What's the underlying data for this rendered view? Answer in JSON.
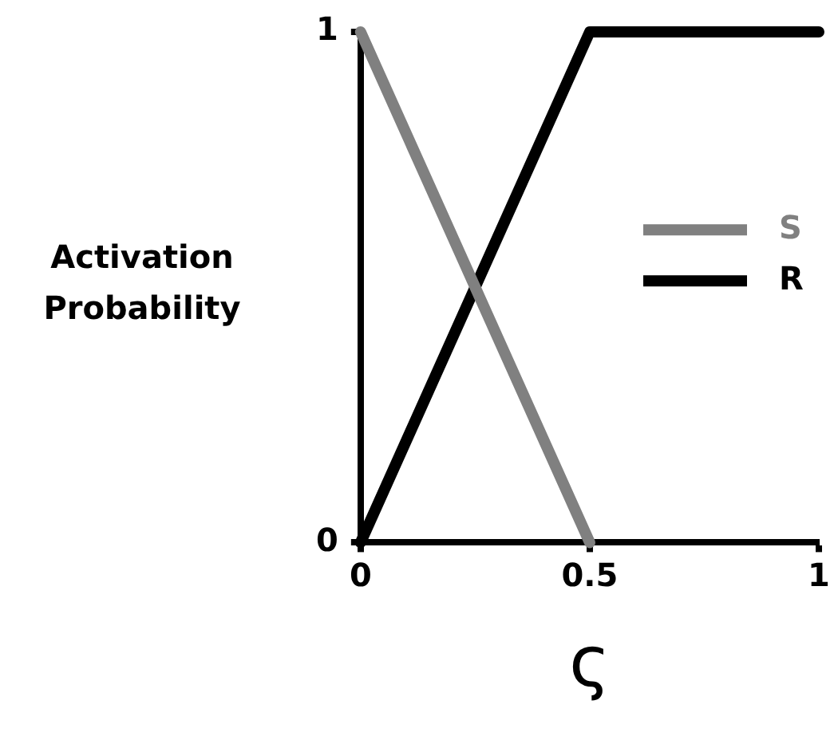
{
  "chart_data": {
    "type": "line",
    "xlabel": "ς",
    "ylabel": "Activation Probability",
    "xlim": [
      0,
      1
    ],
    "xticks": [
      0,
      0.5,
      1
    ],
    "ylim": [
      0,
      1
    ],
    "yticks": [
      0,
      1
    ],
    "grid": false,
    "legend": "right",
    "marker": "none",
    "line_style": "solid",
    "series": [
      {
        "name": "S",
        "color": "#808080",
        "x": [
          0,
          0.5
        ],
        "values": [
          1,
          0
        ]
      },
      {
        "name": "R",
        "color": "#000000",
        "x": [
          0,
          0.5,
          1
        ],
        "values": [
          0,
          1,
          1
        ]
      }
    ]
  }
}
